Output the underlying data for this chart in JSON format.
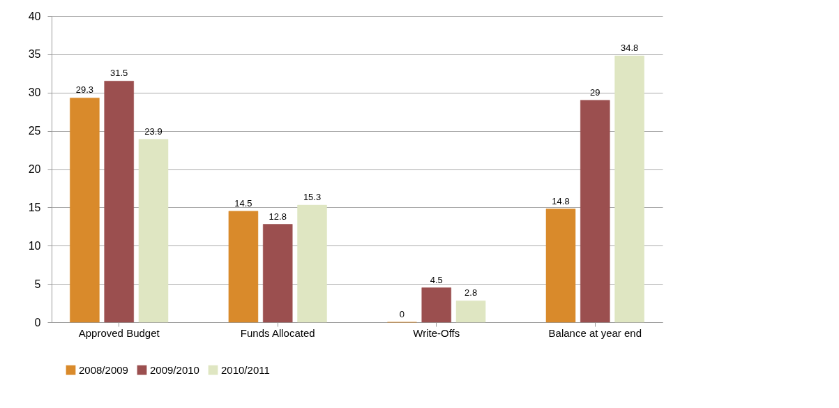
{
  "chart_data": {
    "type": "bar",
    "categories": [
      "Approved Budget",
      "Funds Allocated",
      "Write-Offs",
      "Balance at year end"
    ],
    "series": [
      {
        "name": "2008/2009",
        "color": "#d98a2b",
        "values": [
          29.3,
          14.5,
          0,
          14.8
        ]
      },
      {
        "name": "2009/2010",
        "color": "#9b4f4f",
        "values": [
          31.5,
          12.8,
          4.5,
          29
        ]
      },
      {
        "name": "2010/2011",
        "color": "#dfe6c2",
        "values": [
          23.9,
          15.3,
          2.8,
          34.8
        ]
      }
    ],
    "ylim": [
      0,
      40
    ],
    "yticks": [
      0,
      5,
      10,
      15,
      20,
      25,
      30,
      35,
      40
    ],
    "grid": "y",
    "legend": "bottom",
    "data_labels": true
  }
}
